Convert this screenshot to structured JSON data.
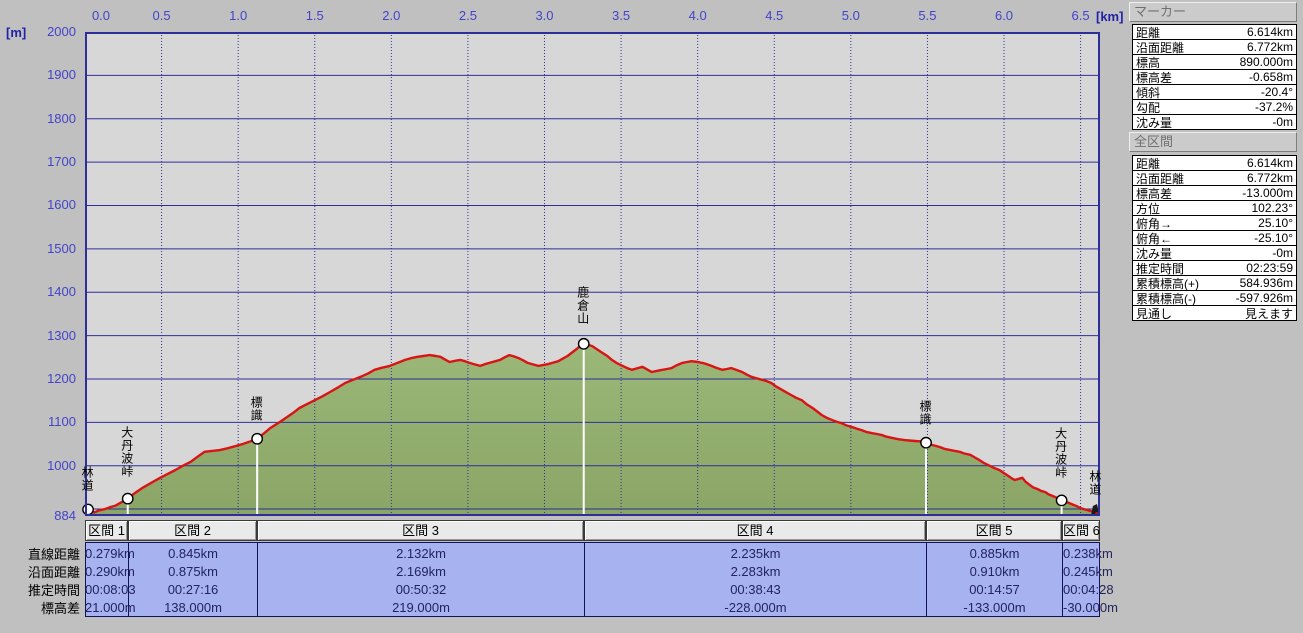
{
  "chart_data": {
    "type": "area",
    "title": "",
    "xlabel_unit": "[km]",
    "ylabel_unit": "[m]",
    "x_ticks": [
      "0.0",
      "0.5",
      "1.0",
      "1.5",
      "2.0",
      "2.5",
      "3.0",
      "3.5",
      "4.0",
      "4.5",
      "5.0",
      "5.5",
      "6.0",
      "6.5"
    ],
    "y_ticks": [
      "2000",
      "1900",
      "1800",
      "1700",
      "1600",
      "1500",
      "1400",
      "1300",
      "1200",
      "1100",
      "1000"
    ],
    "y_bottom_label": "884",
    "xlim": [
      0,
      6.63
    ],
    "ylim": [
      884,
      2000
    ],
    "grid": true,
    "line_color": "#d91414",
    "fill_color": "#9cb878",
    "fill_color_dark": "#8aa565",
    "plot_bg": "#d7d7d7",
    "grid_color": "#2e2e99",
    "marker_line_color": "#ffffff",
    "profile_km_m": [
      [
        0.0,
        903
      ],
      [
        0.03,
        896
      ],
      [
        0.06,
        892
      ],
      [
        0.09,
        897
      ],
      [
        0.13,
        900
      ],
      [
        0.17,
        905
      ],
      [
        0.2,
        908
      ],
      [
        0.24,
        916
      ],
      [
        0.279,
        924
      ],
      [
        0.33,
        938
      ],
      [
        0.38,
        950
      ],
      [
        0.44,
        962
      ],
      [
        0.49,
        972
      ],
      [
        0.54,
        981
      ],
      [
        0.59,
        990
      ],
      [
        0.64,
        1000
      ],
      [
        0.69,
        1009
      ],
      [
        0.74,
        1022
      ],
      [
        0.78,
        1032
      ],
      [
        0.83,
        1034
      ],
      [
        0.88,
        1036
      ],
      [
        0.93,
        1040
      ],
      [
        0.98,
        1045
      ],
      [
        1.03,
        1050
      ],
      [
        1.08,
        1056
      ],
      [
        1.124,
        1062
      ],
      [
        1.17,
        1075
      ],
      [
        1.21,
        1087
      ],
      [
        1.26,
        1098
      ],
      [
        1.31,
        1110
      ],
      [
        1.36,
        1122
      ],
      [
        1.4,
        1133
      ],
      [
        1.45,
        1142
      ],
      [
        1.5,
        1151
      ],
      [
        1.55,
        1160
      ],
      [
        1.6,
        1170
      ],
      [
        1.65,
        1180
      ],
      [
        1.7,
        1191
      ],
      [
        1.75,
        1198
      ],
      [
        1.8,
        1205
      ],
      [
        1.85,
        1213
      ],
      [
        1.89,
        1221
      ],
      [
        1.94,
        1226
      ],
      [
        1.99,
        1230
      ],
      [
        2.04,
        1237
      ],
      [
        2.09,
        1244
      ],
      [
        2.13,
        1248
      ],
      [
        2.17,
        1251
      ],
      [
        2.21,
        1253
      ],
      [
        2.25,
        1255
      ],
      [
        2.29,
        1253
      ],
      [
        2.32,
        1251
      ],
      [
        2.35,
        1245
      ],
      [
        2.38,
        1239
      ],
      [
        2.42,
        1242
      ],
      [
        2.45,
        1244
      ],
      [
        2.48,
        1241
      ],
      [
        2.51,
        1237
      ],
      [
        2.55,
        1233
      ],
      [
        2.58,
        1230
      ],
      [
        2.61,
        1234
      ],
      [
        2.64,
        1237
      ],
      [
        2.68,
        1241
      ],
      [
        2.71,
        1244
      ],
      [
        2.74,
        1250
      ],
      [
        2.77,
        1255
      ],
      [
        2.8,
        1252
      ],
      [
        2.83,
        1248
      ],
      [
        2.86,
        1243
      ],
      [
        2.89,
        1237
      ],
      [
        2.93,
        1233
      ],
      [
        2.96,
        1230
      ],
      [
        2.99,
        1232
      ],
      [
        3.02,
        1234
      ],
      [
        3.06,
        1238
      ],
      [
        3.09,
        1241
      ],
      [
        3.12,
        1247
      ],
      [
        3.15,
        1253
      ],
      [
        3.18,
        1261
      ],
      [
        3.21,
        1269
      ],
      [
        3.23,
        1275
      ],
      [
        3.256,
        1281
      ],
      [
        3.29,
        1278
      ],
      [
        3.31,
        1276
      ],
      [
        3.34,
        1269
      ],
      [
        3.37,
        1262
      ],
      [
        3.41,
        1253
      ],
      [
        3.44,
        1244
      ],
      [
        3.47,
        1237
      ],
      [
        3.51,
        1230
      ],
      [
        3.54,
        1225
      ],
      [
        3.57,
        1221
      ],
      [
        3.6,
        1224
      ],
      [
        3.64,
        1228
      ],
      [
        3.67,
        1222
      ],
      [
        3.7,
        1216
      ],
      [
        3.74,
        1219
      ],
      [
        3.77,
        1221
      ],
      [
        3.8,
        1223
      ],
      [
        3.83,
        1225
      ],
      [
        3.86,
        1231
      ],
      [
        3.9,
        1237
      ],
      [
        3.93,
        1239
      ],
      [
        3.96,
        1241
      ],
      [
        4.0,
        1239
      ],
      [
        4.03,
        1237
      ],
      [
        4.06,
        1234
      ],
      [
        4.09,
        1230
      ],
      [
        4.12,
        1226
      ],
      [
        4.16,
        1221
      ],
      [
        4.19,
        1223
      ],
      [
        4.22,
        1225
      ],
      [
        4.25,
        1221
      ],
      [
        4.29,
        1216
      ],
      [
        4.32,
        1210
      ],
      [
        4.35,
        1205
      ],
      [
        4.38,
        1202
      ],
      [
        4.42,
        1198
      ],
      [
        4.45,
        1195
      ],
      [
        4.48,
        1191
      ],
      [
        4.51,
        1183
      ],
      [
        4.55,
        1175
      ],
      [
        4.58,
        1169
      ],
      [
        4.61,
        1163
      ],
      [
        4.64,
        1157
      ],
      [
        4.68,
        1151
      ],
      [
        4.71,
        1142
      ],
      [
        4.75,
        1133
      ],
      [
        4.78,
        1125
      ],
      [
        4.81,
        1117
      ],
      [
        4.84,
        1111
      ],
      [
        4.88,
        1105
      ],
      [
        4.91,
        1101
      ],
      [
        4.94,
        1098
      ],
      [
        4.97,
        1093
      ],
      [
        5.01,
        1089
      ],
      [
        5.04,
        1085
      ],
      [
        5.07,
        1082
      ],
      [
        5.1,
        1078
      ],
      [
        5.14,
        1075
      ],
      [
        5.17,
        1073
      ],
      [
        5.2,
        1071
      ],
      [
        5.23,
        1067
      ],
      [
        5.27,
        1064
      ],
      [
        5.31,
        1061
      ],
      [
        5.35,
        1059
      ],
      [
        5.38,
        1058
      ],
      [
        5.42,
        1057
      ],
      [
        5.46,
        1056
      ],
      [
        5.491,
        1053
      ],
      [
        5.53,
        1048
      ],
      [
        5.58,
        1043
      ],
      [
        5.61,
        1039
      ],
      [
        5.65,
        1036
      ],
      [
        5.68,
        1034
      ],
      [
        5.71,
        1032
      ],
      [
        5.74,
        1028
      ],
      [
        5.78,
        1025
      ],
      [
        5.81,
        1019
      ],
      [
        5.84,
        1013
      ],
      [
        5.87,
        1006
      ],
      [
        5.91,
        999
      ],
      [
        5.94,
        994
      ],
      [
        5.97,
        990
      ],
      [
        6.0,
        983
      ],
      [
        6.03,
        976
      ],
      [
        6.05,
        971
      ],
      [
        6.07,
        967
      ],
      [
        6.1,
        970
      ],
      [
        6.12,
        972
      ],
      [
        6.14,
        963
      ],
      [
        6.17,
        955
      ],
      [
        6.19,
        950
      ],
      [
        6.22,
        946
      ],
      [
        6.24,
        942
      ],
      [
        6.27,
        939
      ],
      [
        6.29,
        934
      ],
      [
        6.32,
        930
      ],
      [
        6.35,
        925
      ],
      [
        6.376,
        920
      ],
      [
        6.41,
        916
      ],
      [
        6.43,
        913
      ],
      [
        6.46,
        909
      ],
      [
        6.48,
        906
      ],
      [
        6.5,
        902
      ],
      [
        6.53,
        899
      ],
      [
        6.55,
        897
      ],
      [
        6.57,
        895
      ],
      [
        6.59,
        892
      ],
      [
        6.614,
        890
      ]
    ],
    "markers": [
      {
        "label": "林道",
        "km": 0.02,
        "elev": 899,
        "style": "circle"
      },
      {
        "label": "大丹波峠",
        "km": 0.279,
        "elev": 924,
        "style": "circle"
      },
      {
        "label": "標識",
        "km": 1.124,
        "elev": 1062,
        "style": "circle"
      },
      {
        "label": "鹿倉山",
        "km": 3.256,
        "elev": 1281,
        "style": "circle"
      },
      {
        "label": "標識",
        "km": 5.491,
        "elev": 1053,
        "style": "circle"
      },
      {
        "label": "大丹波峠",
        "km": 6.376,
        "elev": 920,
        "style": "circle"
      },
      {
        "label": "林道",
        "km": 6.6,
        "elev": 891,
        "style": "cursor"
      }
    ]
  },
  "section_table": {
    "row_labels": [
      "直線距離",
      "沿面距離",
      "推定時間",
      "標高差"
    ],
    "boundaries_km": [
      0,
      0.279,
      1.124,
      3.256,
      5.491,
      6.376,
      6.63
    ],
    "sections": [
      {
        "label": "区間 1",
        "values": [
          "0.279km",
          "0.290km",
          "00:08:03",
          "21.000m"
        ]
      },
      {
        "label": "区間 2",
        "values": [
          "0.845km",
          "0.875km",
          "00:27:16",
          "138.000m"
        ]
      },
      {
        "label": "区間 3",
        "values": [
          "2.132km",
          "2.169km",
          "00:50:32",
          "219.000m"
        ]
      },
      {
        "label": "区間 4",
        "values": [
          "2.235km",
          "2.283km",
          "00:38:43",
          "-228.000m"
        ]
      },
      {
        "label": "区間 5",
        "values": [
          "0.885km",
          "0.910km",
          "00:14:57",
          "-133.000m"
        ]
      },
      {
        "label": "区間 6",
        "values": [
          "0.238km",
          "0.245km",
          "00:04:28",
          "-30.000m"
        ]
      }
    ]
  },
  "marker_panel": {
    "title": "マーカー",
    "rows": [
      {
        "label": "距離",
        "value": "6.614km"
      },
      {
        "label": "沿面距離",
        "value": "6.772km"
      },
      {
        "label": "標高",
        "value": "890.000m"
      },
      {
        "label": "標高差",
        "value": "-0.658m"
      },
      {
        "label": "傾斜",
        "value": "-20.4°"
      },
      {
        "label": "勾配",
        "value": "-37.2%"
      },
      {
        "label": "沈み量",
        "value": "-0m"
      }
    ]
  },
  "total_panel": {
    "title": "全区間",
    "rows": [
      {
        "label": "距離",
        "value": "6.614km"
      },
      {
        "label": "沿面距離",
        "value": "6.772km"
      },
      {
        "label": "標高差",
        "value": "-13.000m"
      },
      {
        "label": "方位",
        "value": "102.23°"
      },
      {
        "label": "俯角→",
        "value": "25.10°"
      },
      {
        "label": "俯角←",
        "value": "-25.10°"
      },
      {
        "label": "沈み量",
        "value": "-0m"
      },
      {
        "label": "推定時間",
        "value": "02:23:59"
      },
      {
        "label": "累積標高(+)",
        "value": "584.936m"
      },
      {
        "label": "累積標高(-)",
        "value": "-597.926m"
      },
      {
        "label": "見通し",
        "value": "見えます"
      }
    ]
  }
}
